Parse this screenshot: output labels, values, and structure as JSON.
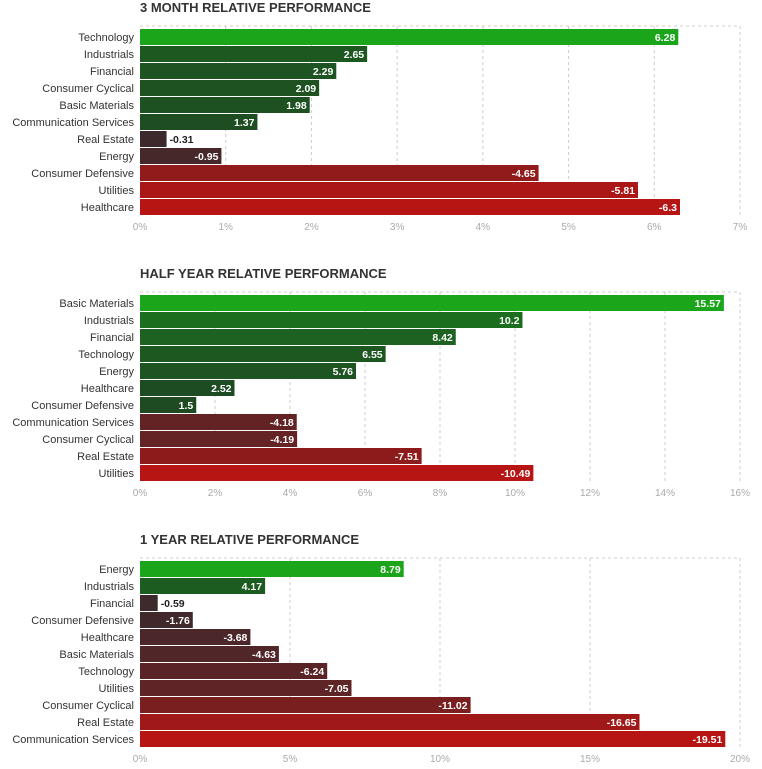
{
  "colors": {
    "positive_max": "#1aa51a",
    "positive_min": "#1e4a22",
    "negative_min": "#3a2a2c",
    "negative_max": "#b71414",
    "grid": "#cccccc"
  },
  "chart_data": [
    {
      "type": "bar",
      "orientation": "horizontal",
      "title": "3 MONTH RELATIVE PERFORMANCE",
      "categories": [
        "Technology",
        "Industrials",
        "Financial",
        "Consumer Cyclical",
        "Basic Materials",
        "Communication Services",
        "Real Estate",
        "Energy",
        "Consumer Defensive",
        "Utilities",
        "Healthcare"
      ],
      "values": [
        6.28,
        2.65,
        2.29,
        2.09,
        1.98,
        1.37,
        -0.31,
        -0.95,
        -4.65,
        -5.81,
        -6.3
      ],
      "value_labels": [
        "6.28",
        "2.65",
        "2.29",
        "2.09",
        "1.98",
        "1.37",
        "-0.31",
        "-0.95",
        "-4.65",
        "-5.81",
        "-6.3"
      ],
      "xlim": [
        0,
        7
      ],
      "ticks": [
        "0%",
        "1%",
        "2%",
        "3%",
        "4%",
        "5%",
        "6%",
        "7%"
      ],
      "bar_magnitude": "absolute"
    },
    {
      "type": "bar",
      "orientation": "horizontal",
      "title": "HALF YEAR RELATIVE PERFORMANCE",
      "categories": [
        "Basic Materials",
        "Industrials",
        "Financial",
        "Technology",
        "Energy",
        "Healthcare",
        "Consumer Defensive",
        "Communication Services",
        "Consumer Cyclical",
        "Real Estate",
        "Utilities"
      ],
      "values": [
        15.57,
        10.2,
        8.42,
        6.55,
        5.76,
        2.52,
        1.5,
        -4.18,
        -4.19,
        -7.51,
        -10.49
      ],
      "value_labels": [
        "15.57",
        "10.2",
        "8.42",
        "6.55",
        "5.76",
        "2.52",
        "1.5",
        "-4.18",
        "-4.19",
        "-7.51",
        "-10.49"
      ],
      "xlim": [
        0,
        16
      ],
      "ticks": [
        "0%",
        "2%",
        "4%",
        "6%",
        "8%",
        "10%",
        "12%",
        "14%",
        "16%"
      ],
      "bar_magnitude": "absolute"
    },
    {
      "type": "bar",
      "orientation": "horizontal",
      "title": "1 YEAR RELATIVE PERFORMANCE",
      "categories": [
        "Energy",
        "Industrials",
        "Financial",
        "Consumer Defensive",
        "Healthcare",
        "Basic Materials",
        "Technology",
        "Utilities",
        "Consumer Cyclical",
        "Real Estate",
        "Communication Services"
      ],
      "values": [
        8.79,
        4.17,
        -0.59,
        -1.76,
        -3.68,
        -4.63,
        -6.24,
        -7.05,
        -11.02,
        -16.65,
        -19.51
      ],
      "value_labels": [
        "8.79",
        "4.17",
        "-0.59",
        "-1.76",
        "-3.68",
        "-4.63",
        "-6.24",
        "-7.05",
        "-11.02",
        "-16.65",
        "-19.51"
      ],
      "xlim": [
        0,
        20
      ],
      "ticks": [
        "0%",
        "5%",
        "10%",
        "15%",
        "20%"
      ],
      "bar_magnitude": "absolute"
    }
  ]
}
